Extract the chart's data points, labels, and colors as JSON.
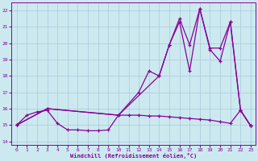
{
  "xlabel": "Windchill (Refroidissement éolien,°C)",
  "xlim": [
    -0.5,
    23.5
  ],
  "ylim": [
    13.8,
    22.5
  ],
  "yticks": [
    14,
    15,
    16,
    17,
    18,
    19,
    20,
    21,
    22
  ],
  "xticks": [
    0,
    1,
    2,
    3,
    4,
    5,
    6,
    7,
    8,
    9,
    10,
    11,
    12,
    13,
    14,
    15,
    16,
    17,
    18,
    19,
    20,
    21,
    22,
    23
  ],
  "background_color": "#cce9f0",
  "grid_color": "#aac8d8",
  "line_color": "#880099",
  "curve1_x": [
    0,
    1,
    2,
    3,
    4,
    5,
    6,
    7,
    8,
    9,
    10,
    11,
    12,
    13,
    14,
    15,
    16,
    17,
    18,
    19,
    20,
    21,
    22,
    23
  ],
  "curve1_y": [
    15.0,
    15.6,
    15.8,
    15.9,
    15.1,
    14.7,
    14.7,
    14.65,
    14.65,
    14.7,
    15.6,
    15.6,
    15.6,
    15.55,
    15.55,
    15.5,
    15.45,
    15.4,
    15.35,
    15.3,
    15.2,
    15.1,
    15.9,
    14.95
  ],
  "curve2_x": [
    0,
    3,
    10,
    12,
    13,
    14,
    15,
    16,
    17,
    18,
    19,
    20,
    21,
    22,
    23
  ],
  "curve2_y": [
    15.0,
    16.0,
    15.6,
    17.0,
    18.3,
    18.0,
    19.9,
    21.3,
    18.3,
    22.1,
    19.6,
    18.9,
    21.3,
    15.9,
    14.95
  ],
  "curve3_x": [
    0,
    3,
    10,
    14,
    15,
    16,
    17,
    18,
    19,
    20,
    21,
    22,
    23
  ],
  "curve3_y": [
    15.0,
    16.0,
    15.6,
    18.0,
    19.9,
    21.5,
    19.9,
    22.1,
    19.7,
    19.7,
    21.3,
    15.9,
    14.95
  ]
}
